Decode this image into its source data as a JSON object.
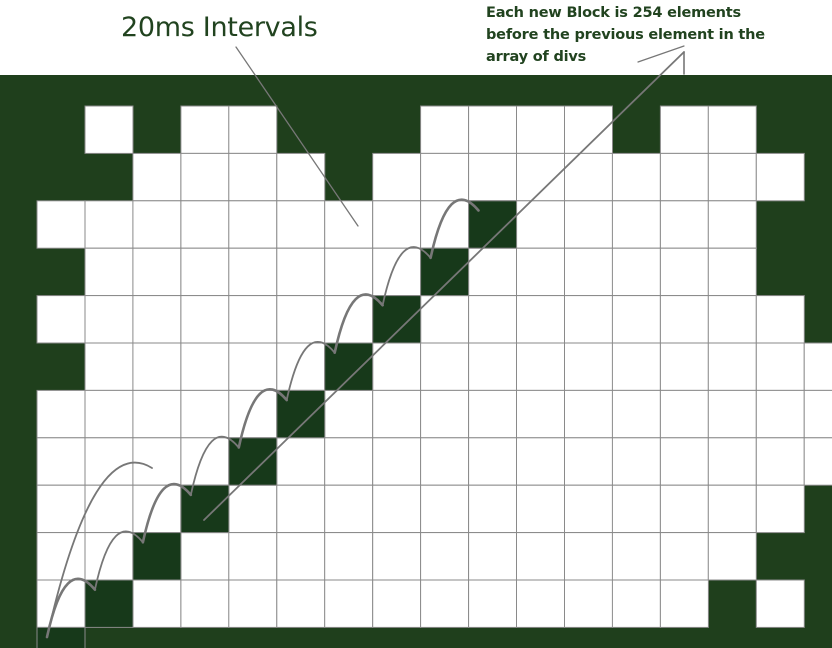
{
  "labels": {
    "title": "20ms Intervals",
    "note_lines": [
      "Each new Block is 254 elements",
      "before the previous element in the",
      "array of divs"
    ]
  },
  "colors": {
    "background": "#1f3f1c",
    "cell_white": "#ffffff",
    "cell_dark": "#17391a",
    "grid_line": "#8a8a8a",
    "annotation_stroke": "#777777",
    "text": "#21431f"
  },
  "grid": {
    "columns": 17,
    "rows": 11,
    "white_cells": [
      [
        1,
        3,
        4,
        8,
        9,
        10,
        11,
        13,
        14
      ],
      [
        2,
        3,
        4,
        5,
        7,
        8,
        9,
        10,
        11,
        12,
        13,
        14,
        15
      ],
      [
        0,
        1,
        2,
        3,
        4,
        5,
        6,
        7,
        8,
        9,
        10,
        11,
        12,
        13,
        14
      ],
      [
        1,
        2,
        3,
        4,
        5,
        6,
        7,
        8,
        9,
        10,
        11,
        12,
        13,
        14
      ],
      [
        0,
        1,
        2,
        3,
        4,
        5,
        6,
        7,
        8,
        9,
        10,
        11,
        12,
        13,
        14,
        15
      ],
      [
        1,
        2,
        3,
        4,
        5,
        6,
        7,
        8,
        9,
        10,
        11,
        12,
        13,
        14,
        15,
        16
      ],
      [
        0,
        1,
        2,
        3,
        4,
        5,
        6,
        7,
        8,
        9,
        10,
        11,
        12,
        13,
        14,
        15,
        16
      ],
      [
        0,
        1,
        2,
        3,
        4,
        5,
        6,
        7,
        8,
        9,
        10,
        11,
        12,
        13,
        14,
        15,
        16
      ],
      [
        0,
        1,
        2,
        3,
        4,
        5,
        6,
        7,
        8,
        9,
        10,
        11,
        12,
        13,
        14,
        15
      ],
      [
        0,
        1,
        2,
        3,
        4,
        5,
        6,
        7,
        8,
        9,
        10,
        11,
        12,
        13,
        14
      ],
      [
        0,
        2,
        3,
        4,
        5,
        6,
        7,
        8,
        9,
        10,
        11,
        12,
        13,
        15
      ]
    ],
    "dark_blocks": [
      [
        11,
        0
      ],
      [
        10,
        1
      ],
      [
        9,
        2
      ],
      [
        8,
        3
      ],
      [
        7,
        4
      ],
      [
        6,
        5
      ],
      [
        5,
        6
      ],
      [
        4,
        7
      ],
      [
        3,
        8
      ],
      [
        2,
        9
      ]
    ]
  }
}
